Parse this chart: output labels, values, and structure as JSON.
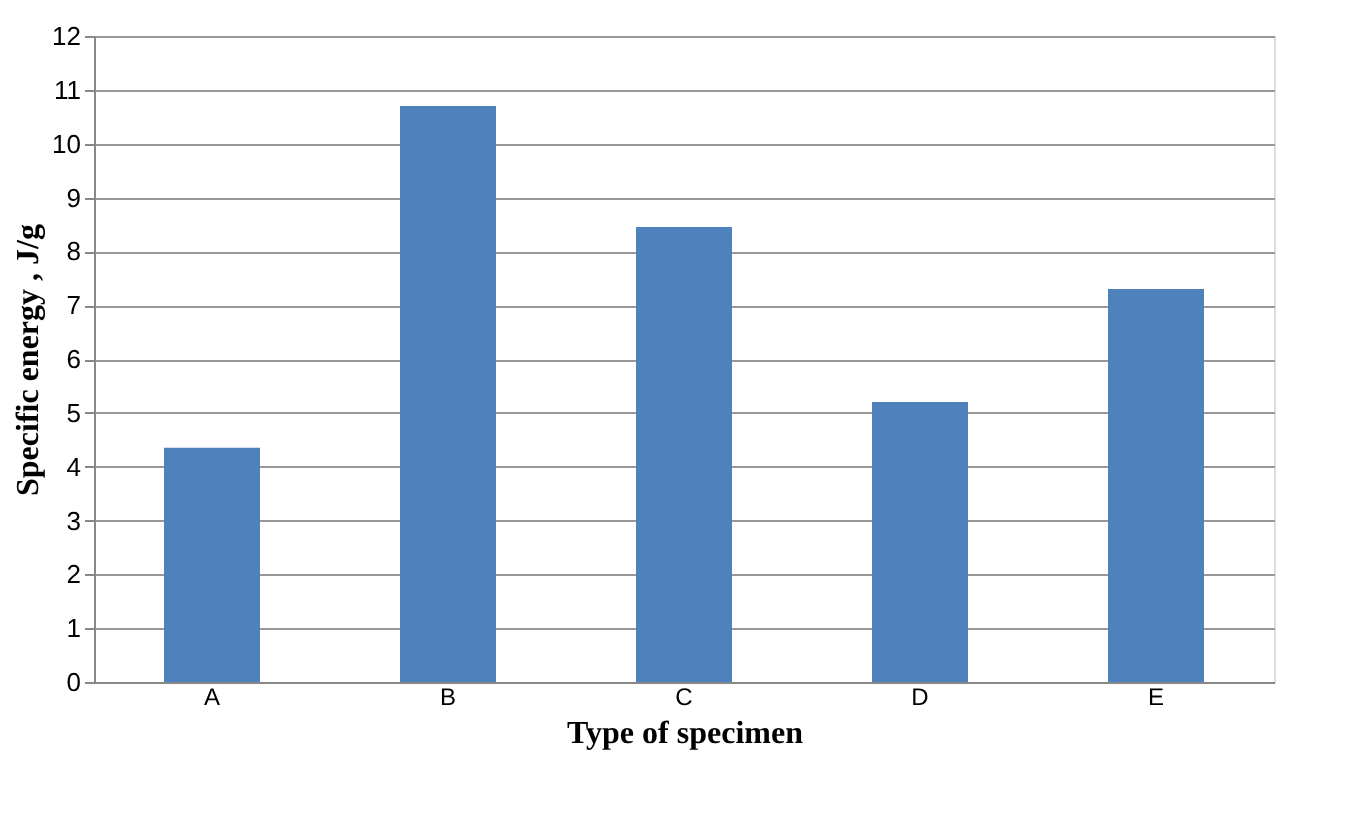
{
  "chart_data": {
    "type": "bar",
    "xlabel": "Type of specimen",
    "ylabel": "Specific energy , J/g",
    "categories": [
      "A",
      "B",
      "C",
      "D",
      "E"
    ],
    "values": [
      4.35,
      10.7,
      8.45,
      5.2,
      7.3
    ],
    "color": "#4f81bd",
    "ylim": [
      0,
      12
    ],
    "yticks": [
      0,
      1,
      2,
      3,
      4,
      5,
      6,
      7,
      8,
      9,
      10,
      11,
      12
    ],
    "grid": "y"
  }
}
